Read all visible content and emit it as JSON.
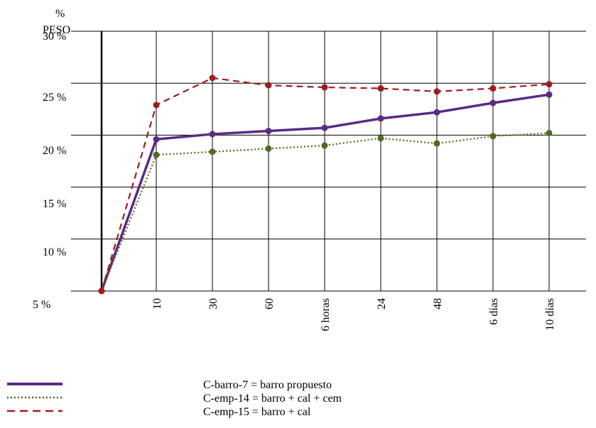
{
  "chart_data": {
    "type": "line",
    "title": "",
    "ylabel_unit": "%",
    "ylabel": "PESO",
    "xlabel": "",
    "categories": [
      "",
      "10",
      "30",
      "60",
      "6 horas",
      "24",
      "48",
      "6 días",
      "10 días"
    ],
    "y_ticks": [
      "30 %",
      "25 %",
      "20 %",
      "15 %",
      "10 %",
      "5 %"
    ],
    "y_tick_values": [
      30,
      25,
      20,
      15,
      10,
      5
    ],
    "ylim": [
      5,
      30
    ],
    "grid": true,
    "legend_position": "bottom",
    "series": [
      {
        "name": "C-barro-7 = barro propuesto",
        "color": "#5b2a86",
        "style": "solid",
        "values": [
          5,
          19.6,
          20.1,
          20.4,
          20.7,
          21.6,
          22.2,
          23.1,
          23.9
        ]
      },
      {
        "name": "C-emp-14 = barro + cal + cem",
        "color": "#4e6b1f",
        "style": "dotted",
        "values": [
          5,
          18.1,
          18.4,
          18.7,
          19.0,
          19.7,
          19.2,
          19.9,
          20.2
        ]
      },
      {
        "name": "C-emp-15 = barro + cal",
        "color": "#a01c1c",
        "style": "dashed",
        "values": [
          5,
          22.9,
          25.5,
          24.8,
          24.6,
          24.5,
          24.2,
          24.5,
          24.9
        ]
      }
    ]
  }
}
